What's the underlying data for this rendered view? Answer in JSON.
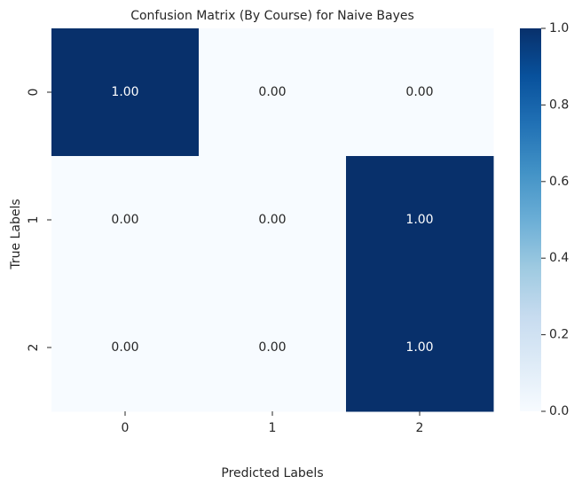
{
  "chart_data": {
    "type": "heatmap",
    "title": "Confusion Matrix (By Course) for Naive Bayes",
    "xlabel": "Predicted Labels",
    "ylabel": "True Labels",
    "x_categories": [
      "0",
      "1",
      "2"
    ],
    "y_categories": [
      "0",
      "1",
      "2"
    ],
    "values": [
      [
        1.0,
        0.0,
        0.0
      ],
      [
        0.0,
        0.0,
        1.0
      ],
      [
        0.0,
        0.0,
        1.0
      ]
    ],
    "cell_labels": [
      [
        "1.00",
        "0.00",
        "0.00"
      ],
      [
        "0.00",
        "0.00",
        "1.00"
      ],
      [
        "0.00",
        "0.00",
        "1.00"
      ]
    ],
    "colormap": "Blues",
    "colors": {
      "low": "#f7fbff",
      "high": "#08306b"
    },
    "colorbar": {
      "range": [
        0.0,
        1.0
      ],
      "ticks": [
        "0.0",
        "0.2",
        "0.4",
        "0.6",
        "0.8",
        "1.0"
      ]
    }
  }
}
